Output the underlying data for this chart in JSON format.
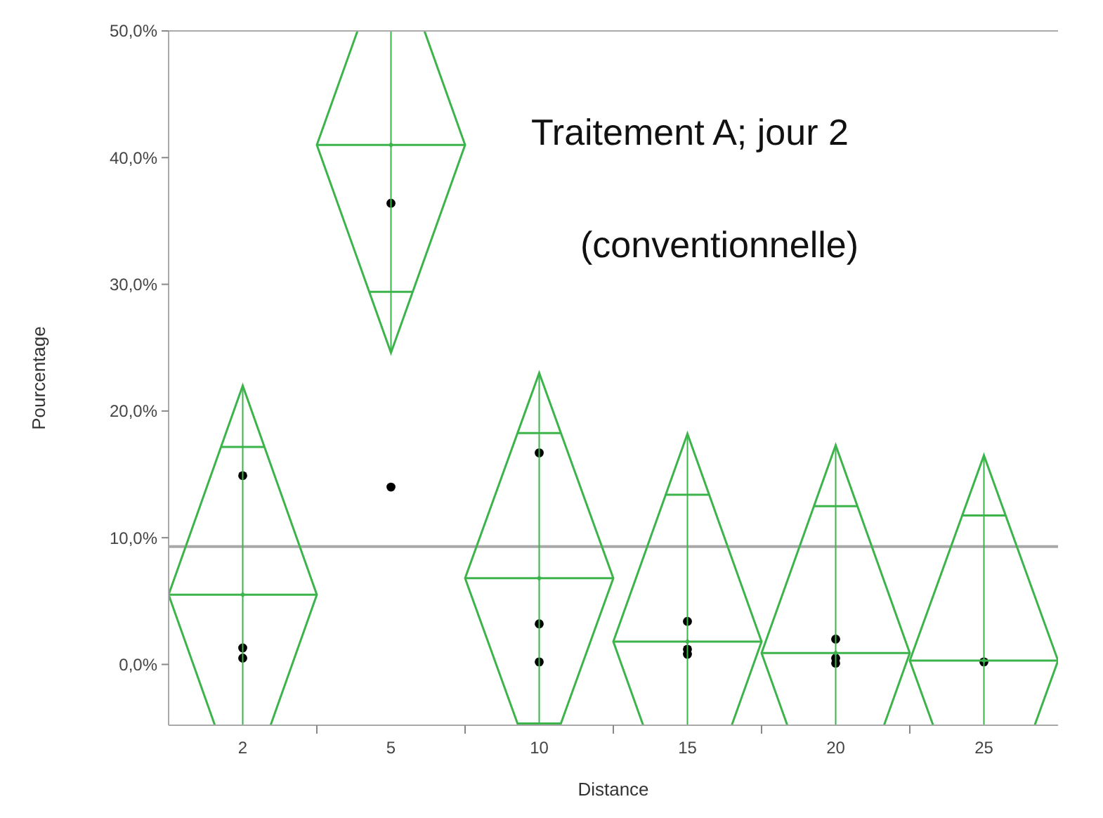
{
  "chart_data": {
    "type": "scatter",
    "xlabel": "Distance",
    "ylabel": "Pourcentage",
    "categories": [
      "2",
      "5",
      "10",
      "15",
      "20",
      "25"
    ],
    "ylim": [
      -4.8,
      50
    ],
    "yticks": [
      {
        "value": 0,
        "label": "0,0%"
      },
      {
        "value": 10,
        "label": "10,0%"
      },
      {
        "value": 20,
        "label": "20,0%"
      },
      {
        "value": 30,
        "label": "30,0%"
      },
      {
        "value": 40,
        "label": "40,0%"
      },
      {
        "value": 50,
        "label": "50,0%"
      }
    ],
    "grid": false,
    "series": [
      {
        "marker": "circle",
        "color": "#000000",
        "x": [
          "2",
          "2",
          "2",
          "5",
          "5",
          "10",
          "10",
          "10",
          "15",
          "15",
          "15",
          "20",
          "20",
          "20",
          "25"
        ],
        "values": [
          14.9,
          1.3,
          0.5,
          36.4,
          14.0,
          16.7,
          3.2,
          0.2,
          3.4,
          1.2,
          0.8,
          2.0,
          0.5,
          0.1,
          0.2
        ]
      },
      {
        "marker": "diamond",
        "color": "#3cb44b",
        "x": [
          "2",
          "5",
          "10",
          "15",
          "20",
          "25"
        ],
        "values": [
          5.5,
          41.0,
          6.8,
          1.8,
          0.9,
          0.3
        ],
        "errors": [
          16.5,
          16.4,
          16.2,
          16.4,
          16.4,
          16.2
        ]
      }
    ],
    "ref_lines": [
      {
        "axis": "y",
        "value": 9.3,
        "color": "#a8a8a8"
      }
    ],
    "annotations": [
      "Traitement A; jour 2",
      "(conventionnelle)"
    ]
  }
}
